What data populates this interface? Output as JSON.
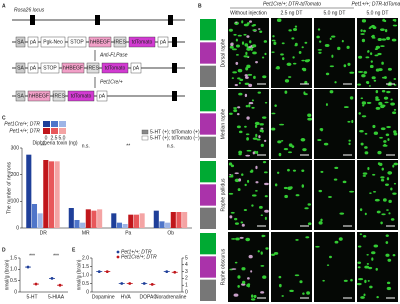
{
  "panel_labels": [
    "A",
    "B",
    "C",
    "D",
    "E"
  ],
  "panel_a": {
    "locus": "Rosa26 locus",
    "rows": [
      [
        "SA",
        "pA",
        "Pgk-Neo",
        "STOP",
        "hHBEGF",
        "IRES",
        "tdTomato",
        "pA"
      ],
      [
        "SA",
        "pA",
        "STOP",
        "hHBEGF",
        "IRES",
        "tdTomato",
        "pA"
      ],
      [
        "SA",
        "hHBEGF",
        "IRES",
        "tdTomato",
        "pA"
      ]
    ],
    "steps": [
      "Anti-FLPase",
      "Pet1Cre/+"
    ]
  },
  "panel_b": {
    "groups": [
      "Pet1Cre/+; DTR-tdTomato",
      "Pet1+/+; DTR-tdTomato"
    ],
    "columns": [
      "Without injection",
      "2.5 ng DT",
      "5.0 ng DT",
      "5.0 ng DT"
    ],
    "rows": [
      "Dorsal raphe",
      "Median raphe",
      "Raphe pallidus",
      "Raphe obscurus"
    ]
  },
  "chart_data": [
    {
      "type": "bar",
      "y_label": "The number of neurons",
      "categories": [
        "DR",
        "MR",
        "Pa",
        "Ob"
      ],
      "series": [
        {
          "color": "#1f3f99",
          "values": [
            275,
            75,
            55,
            65
          ]
        },
        {
          "color": "#4f75c9",
          "values": [
            90,
            30,
            20,
            25
          ]
        },
        {
          "color": "#9db4e6",
          "values": [
            55,
            20,
            15,
            20
          ]
        },
        {
          "color": "#c0161b",
          "values": [
            255,
            70,
            50,
            60
          ]
        },
        {
          "color": "#e8575a",
          "values": [
            250,
            65,
            50,
            60
          ]
        },
        {
          "color": "#f4a4a4",
          "values": [
            250,
            70,
            55,
            60
          ]
        }
      ],
      "legend": {
        "rows": [
          "Pet1Cre/+; DTR",
          "Pet1+/+; DTR"
        ],
        "doses": [
          "0",
          "2.5",
          "5.0"
        ],
        "caption": "Diphtheria toxin (ng)",
        "markers": [
          "5-HT (+); tdTomato (+)",
          "5-HT (+); tdTomato (−)"
        ]
      },
      "annotations": [
        {
          "text": "***",
          "category": "DR"
        },
        {
          "text": "n.s.",
          "category": "MR"
        },
        {
          "text": "**",
          "category": "Pa"
        },
        {
          "text": "n.s.",
          "category": "Ob"
        }
      ],
      "ylim": [
        0,
        300
      ],
      "yticks": [
        0,
        100,
        200,
        300
      ]
    },
    {
      "type": "dot",
      "y_label": "nmol/g (brain)",
      "categories": [
        "5-HT",
        "5-HIAA"
      ],
      "series": [
        {
          "name": "Pet1+/+; DTR",
          "color": "#1f3f99",
          "values": [
            1.1,
            0.6
          ]
        },
        {
          "name": "Pet1Cre/+; DTR",
          "color": "#c0161b",
          "values": [
            0.35,
            0.3
          ]
        }
      ],
      "annotations": [
        {
          "text": "***",
          "category": "5-HT"
        },
        {
          "text": "***",
          "category": "5-HIAA"
        }
      ],
      "ylim": [
        0,
        1.5
      ],
      "yticks": [
        0,
        {
          "value": 0.5,
          "label": "0.5"
        },
        {
          "value": 1,
          "label": "1.0"
        },
        {
          "value": 1.5,
          "label": "1.5"
        }
      ]
    },
    {
      "type": "dot",
      "y_label": "nmol/g (brain)",
      "categories": [
        "Dopamine",
        "HVA",
        "DOPAC",
        "Noradrenaline"
      ],
      "series": [
        {
          "name": "Pet1+/+; DTR",
          "color": "#1f3f99",
          "values": [
            1.2,
            0.5,
            0.5,
            null
          ]
        },
        {
          "name": "Pet1Cre/+; DTR",
          "color": "#c0161b",
          "values": [
            1.2,
            0.5,
            0.45,
            null
          ]
        },
        {
          "color": "#1f3f99",
          "axis": "y2",
          "values": [
            null,
            null,
            null,
            3
          ]
        },
        {
          "color": "#c0161b",
          "axis": "y2",
          "values": [
            null,
            null,
            null,
            2.9
          ]
        }
      ],
      "ylim": [
        0,
        2
      ],
      "yticks": [
        0,
        {
          "value": 0.5,
          "label": "0.5"
        },
        {
          "value": 1,
          "label": "1.0"
        },
        {
          "value": 1.5,
          "label": "1.5"
        },
        {
          "value": 2,
          "label": "2.0"
        }
      ],
      "y2lim": [
        0,
        5
      ],
      "y2ticks": [
        0,
        1,
        2,
        3,
        4,
        5
      ]
    }
  ]
}
